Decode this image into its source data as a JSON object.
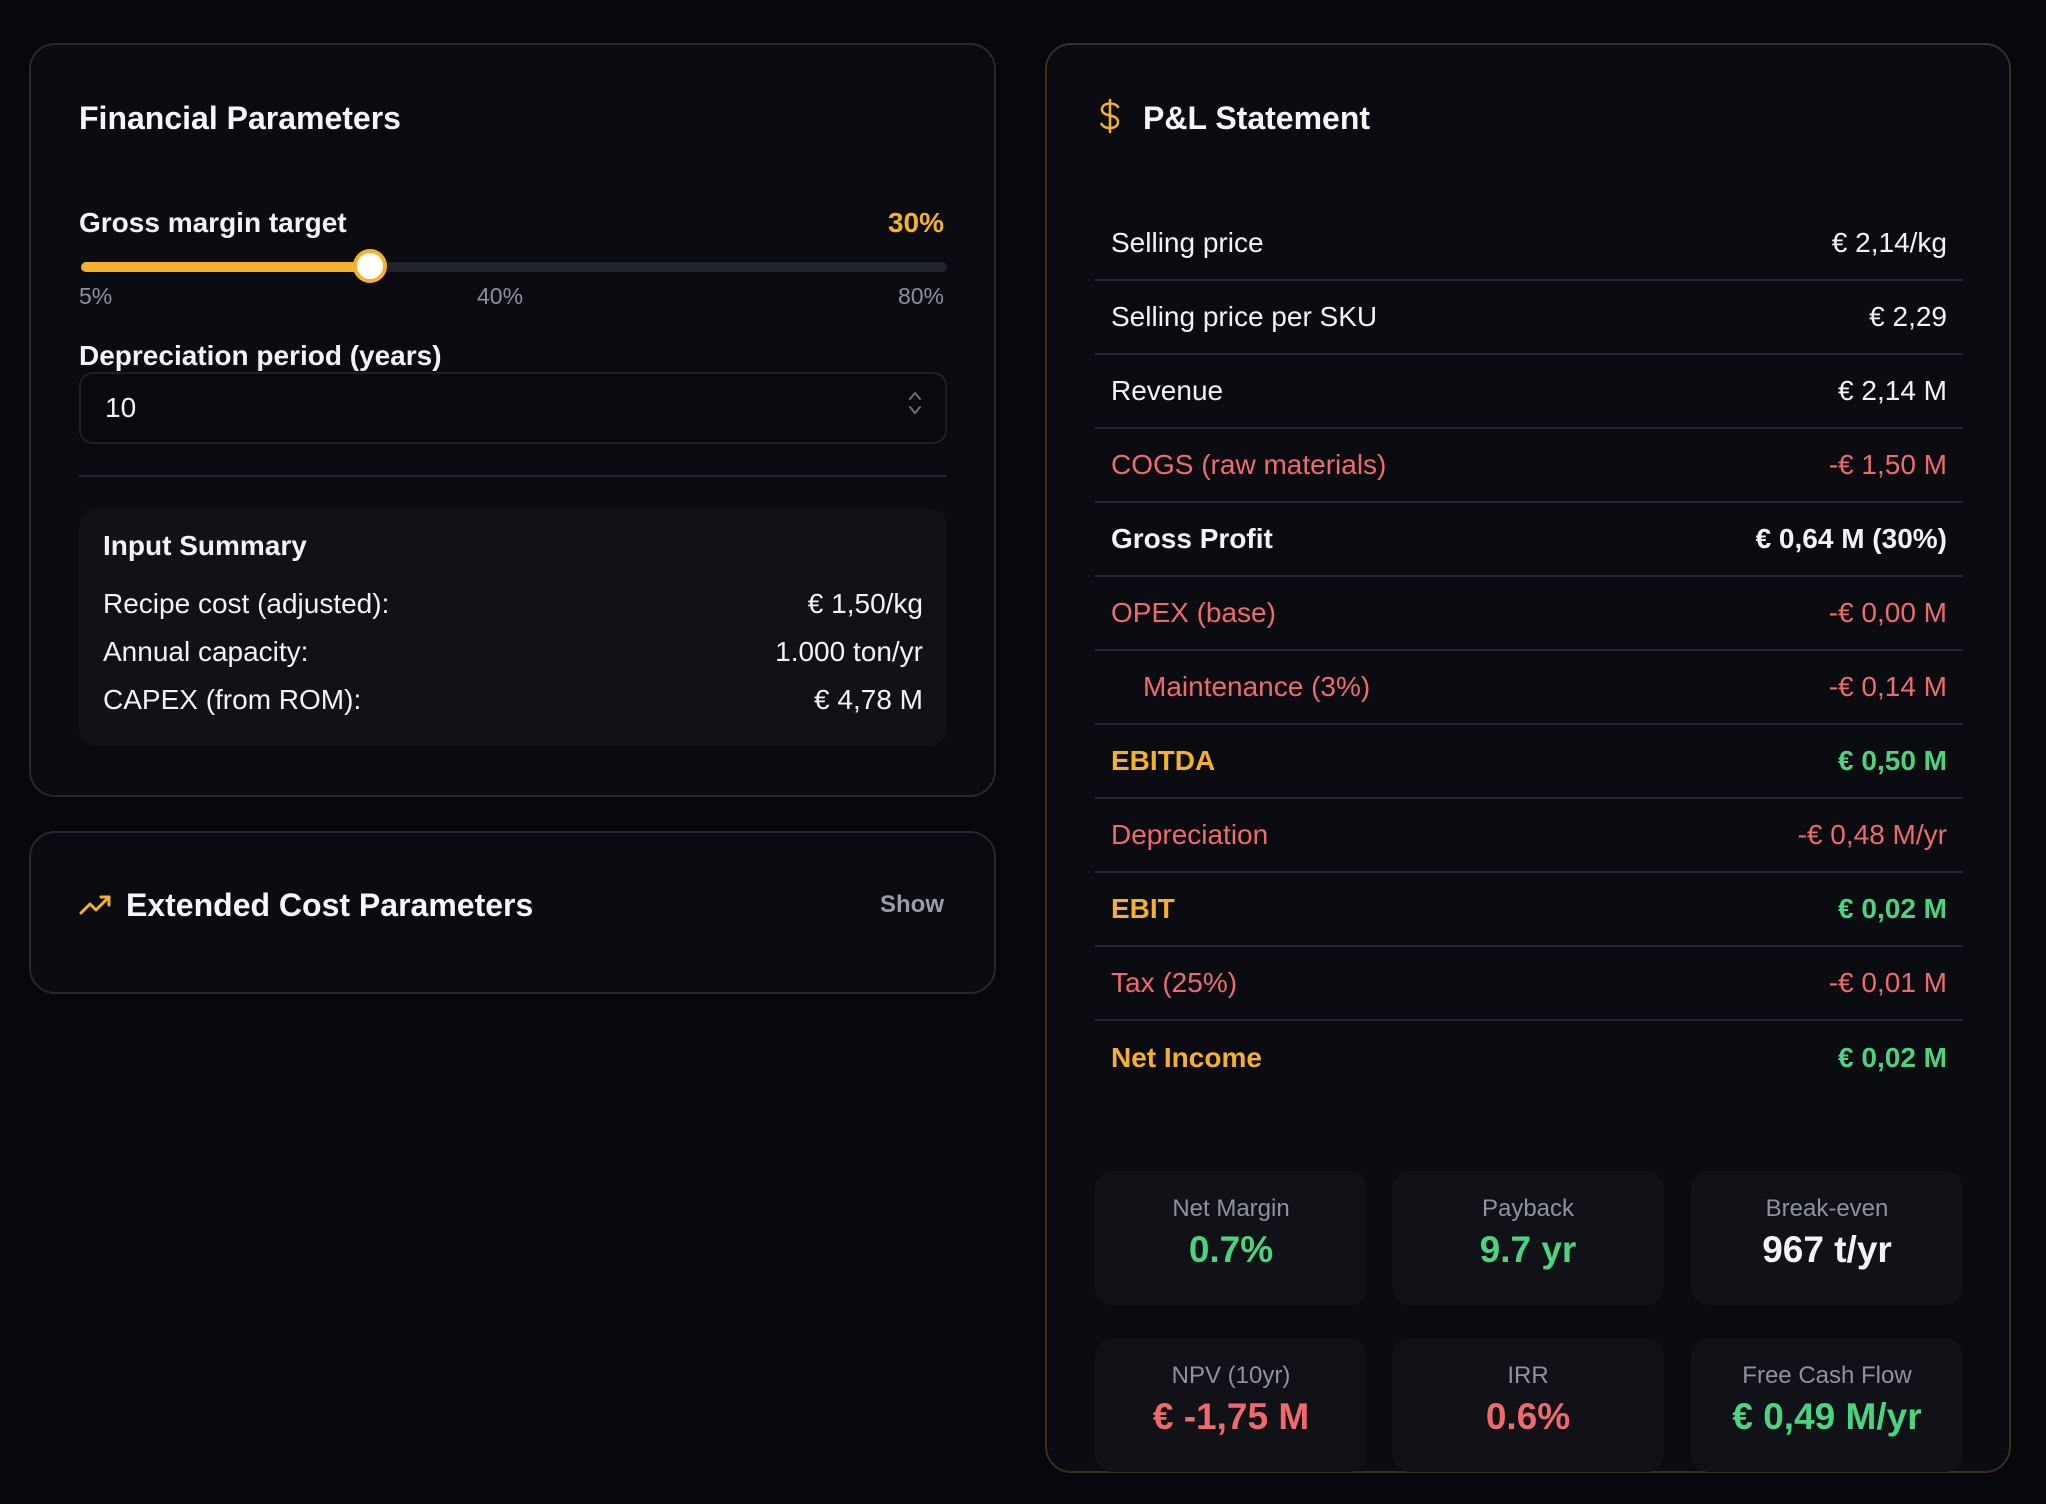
{
  "financial": {
    "title": "Financial Parameters",
    "gross_margin": {
      "label": "Gross margin target",
      "value_text": "30%",
      "value": 30,
      "min": 5,
      "max": 80,
      "tick_min": "5%",
      "tick_mid": "40%",
      "tick_max": "80%"
    },
    "depreciation": {
      "label": "Depreciation period (years)",
      "value": "10"
    },
    "summary": {
      "title": "Input Summary",
      "rows": [
        {
          "label": "Recipe cost (adjusted):",
          "value": "€ 1,50/kg"
        },
        {
          "label": "Annual capacity:",
          "value": "1.000 ton/yr"
        },
        {
          "label": "CAPEX (from ROM):",
          "value": "€ 4,78 M"
        }
      ]
    }
  },
  "extended": {
    "title": "Extended Cost Parameters",
    "toggle_label": "Show"
  },
  "pl": {
    "title": "P&L Statement",
    "rows": [
      {
        "label": "Selling price",
        "value": "€ 2,14/kg",
        "style": "white"
      },
      {
        "label": "Selling price per SKU",
        "value": "€ 2,29",
        "style": "white"
      },
      {
        "label": "Revenue",
        "value": "€ 2,14 M",
        "style": "white"
      },
      {
        "label": "COGS (raw materials)",
        "value": "-€ 1,50 M",
        "style": "red"
      },
      {
        "label": "Gross Profit",
        "value": "€ 0,64 M (30%)",
        "style": "bold"
      },
      {
        "label": "OPEX (base)",
        "value": "-€ 0,00 M",
        "style": "red"
      },
      {
        "label": "Maintenance (3%)",
        "value": "-€ 0,14 M",
        "style": "red",
        "indent": true
      },
      {
        "label": "EBITDA",
        "value": "€ 0,50 M",
        "style": "total"
      },
      {
        "label": "Depreciation",
        "value": "-€ 0,48 M/yr",
        "style": "red"
      },
      {
        "label": "EBIT",
        "value": "€ 0,02 M",
        "style": "total"
      },
      {
        "label": "Tax (25%)",
        "value": "-€ 0,01 M",
        "style": "red"
      },
      {
        "label": "Net Income",
        "value": "€ 0,02 M",
        "style": "total"
      }
    ],
    "metrics": [
      {
        "label": "Net Margin",
        "value": "0.7%",
        "color": "#4ad47f"
      },
      {
        "label": "Payback",
        "value": "9.7 yr",
        "color": "#4ad47f"
      },
      {
        "label": "Break-even",
        "value": "967 t/yr",
        "color": "#f2f3f5"
      },
      {
        "label": "NPV (10yr)",
        "value": "€ -1,75 M",
        "color": "#ef6b6b"
      },
      {
        "label": "IRR",
        "value": "0.6%",
        "color": "#ef6b6b"
      },
      {
        "label": "Free Cash Flow",
        "value": "€ 0,49 M/yr",
        "color": "#4ad47f"
      }
    ]
  },
  "colors": {
    "accent": "#f6b12c",
    "positive": "#4ad47f",
    "negative": "#ef6b6b"
  },
  "icons": {
    "pl": "dollar-icon",
    "extended": "trending-up-icon"
  }
}
